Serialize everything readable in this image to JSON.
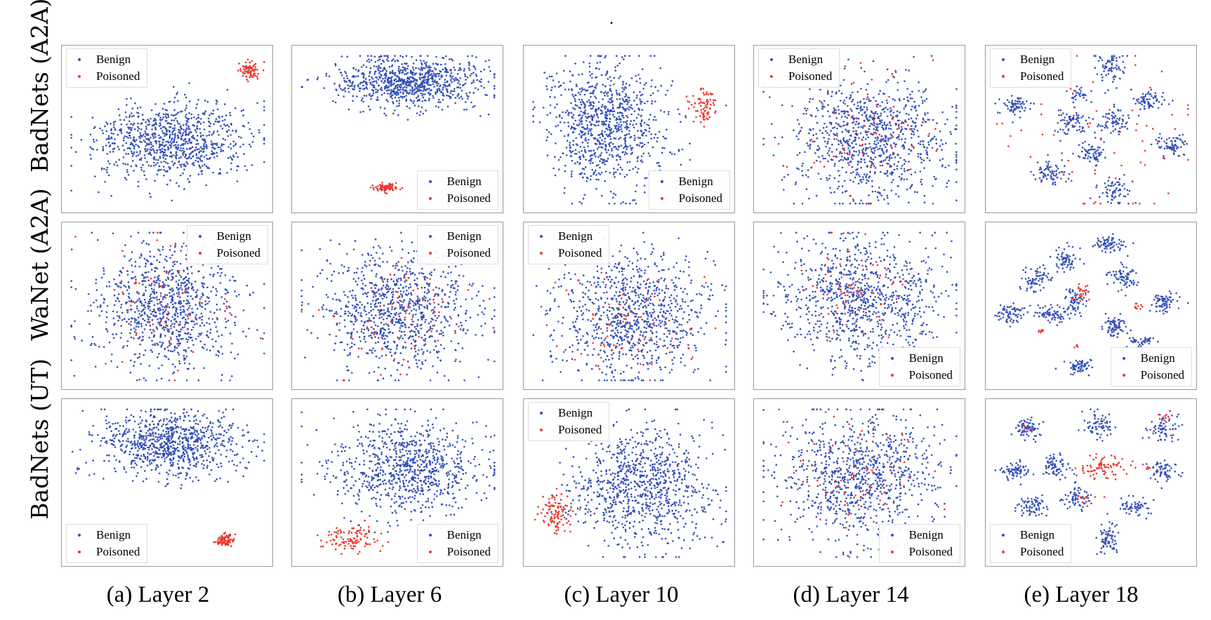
{
  "figure": {
    "period_mark": ".",
    "row_labels": [
      "BadNets (A2A)",
      "WaNet (A2A)",
      "BadNets (UT)"
    ],
    "column_captions": [
      "(a) Layer 2",
      "(b) Layer 6",
      "(c) Layer 10",
      "(d) Layer 14",
      "(e) Layer 18"
    ]
  },
  "colors": {
    "benign": "#3450b8",
    "poisoned": "#e8372f",
    "frame": "#9a9a9a"
  },
  "chart_data": [
    {
      "row": "BadNets (A2A)",
      "layer": "Layer 2",
      "type": "scatter",
      "legend": [
        "Benign",
        "Poisoned"
      ],
      "legend_loc": "top-left",
      "benign_clusters": [
        {
          "cx": 0.52,
          "cy": 0.57,
          "sx": 0.19,
          "sy": 0.12,
          "n": 900
        }
      ],
      "poisoned_clusters": [
        {
          "cx": 0.91,
          "cy": 0.12,
          "sx": 0.025,
          "sy": 0.03,
          "n": 80
        }
      ]
    },
    {
      "row": "BadNets (A2A)",
      "layer": "Layer 6",
      "type": "scatter",
      "legend": [
        "Benign",
        "Poisoned"
      ],
      "legend_loc": "bottom-right",
      "benign_clusters": [
        {
          "cx": 0.55,
          "cy": 0.2,
          "sx": 0.18,
          "sy": 0.08,
          "n": 850
        }
      ],
      "poisoned_clusters": [
        {
          "cx": 0.44,
          "cy": 0.87,
          "sx": 0.03,
          "sy": 0.012,
          "n": 80
        }
      ]
    },
    {
      "row": "BadNets (A2A)",
      "layer": "Layer 10",
      "type": "scatter",
      "legend": [
        "Benign",
        "Poisoned"
      ],
      "legend_loc": "bottom-right",
      "benign_clusters": [
        {
          "cx": 0.38,
          "cy": 0.47,
          "sx": 0.14,
          "sy": 0.2,
          "n": 900
        }
      ],
      "poisoned_clusters": [
        {
          "cx": 0.86,
          "cy": 0.35,
          "sx": 0.04,
          "sy": 0.06,
          "n": 80
        }
      ]
    },
    {
      "row": "BadNets (A2A)",
      "layer": "Layer 14",
      "type": "scatter",
      "legend": [
        "Benign",
        "Poisoned"
      ],
      "legend_loc": "top-left",
      "benign_clusters": [
        {
          "cx": 0.55,
          "cy": 0.55,
          "sx": 0.2,
          "sy": 0.2,
          "n": 900
        }
      ],
      "poisoned_clusters": [
        {
          "cx": 0.55,
          "cy": 0.5,
          "sx": 0.18,
          "sy": 0.2,
          "n": 90
        }
      ]
    },
    {
      "row": "BadNets (A2A)",
      "layer": "Layer 18",
      "type": "scatter",
      "legend": [
        "Benign",
        "Poisoned"
      ],
      "legend_loc": "top-left",
      "benign_clusters": [
        {
          "cx": 0.12,
          "cy": 0.35,
          "sx": 0.04,
          "sy": 0.03,
          "n": 70
        },
        {
          "cx": 0.59,
          "cy": 0.1,
          "sx": 0.035,
          "sy": 0.06,
          "n": 70
        },
        {
          "cx": 0.78,
          "cy": 0.32,
          "sx": 0.04,
          "sy": 0.035,
          "n": 70
        },
        {
          "cx": 0.4,
          "cy": 0.45,
          "sx": 0.04,
          "sy": 0.04,
          "n": 70
        },
        {
          "cx": 0.62,
          "cy": 0.45,
          "sx": 0.04,
          "sy": 0.05,
          "n": 70
        },
        {
          "cx": 0.9,
          "cy": 0.6,
          "sx": 0.04,
          "sy": 0.035,
          "n": 70
        },
        {
          "cx": 0.3,
          "cy": 0.77,
          "sx": 0.04,
          "sy": 0.04,
          "n": 70
        },
        {
          "cx": 0.5,
          "cy": 0.65,
          "sx": 0.035,
          "sy": 0.04,
          "n": 70
        },
        {
          "cx": 0.62,
          "cy": 0.88,
          "sx": 0.04,
          "sy": 0.04,
          "n": 70
        },
        {
          "cx": 0.42,
          "cy": 0.28,
          "sx": 0.03,
          "sy": 0.025,
          "n": 30
        }
      ],
      "poisoned_clusters": [
        {
          "cx": 0.55,
          "cy": 0.55,
          "sx": 0.28,
          "sy": 0.28,
          "n": 70
        }
      ]
    },
    {
      "row": "WaNet (A2A)",
      "layer": "Layer 2",
      "type": "scatter",
      "legend": [
        "Benign",
        "Poisoned"
      ],
      "legend_loc": "top-right",
      "benign_clusters": [
        {
          "cx": 0.5,
          "cy": 0.5,
          "sx": 0.18,
          "sy": 0.2,
          "n": 900
        }
      ],
      "poisoned_clusters": [
        {
          "cx": 0.5,
          "cy": 0.52,
          "sx": 0.18,
          "sy": 0.2,
          "n": 80
        }
      ]
    },
    {
      "row": "WaNet (A2A)",
      "layer": "Layer 6",
      "type": "scatter",
      "legend": [
        "Benign",
        "Poisoned"
      ],
      "legend_loc": "top-right",
      "benign_clusters": [
        {
          "cx": 0.5,
          "cy": 0.52,
          "sx": 0.2,
          "sy": 0.2,
          "n": 900
        }
      ],
      "poisoned_clusters": [
        {
          "cx": 0.5,
          "cy": 0.5,
          "sx": 0.18,
          "sy": 0.2,
          "n": 80
        }
      ]
    },
    {
      "row": "WaNet (A2A)",
      "layer": "Layer 10",
      "type": "scatter",
      "legend": [
        "Benign",
        "Poisoned"
      ],
      "legend_loc": "top-left",
      "benign_clusters": [
        {
          "cx": 0.52,
          "cy": 0.55,
          "sx": 0.2,
          "sy": 0.2,
          "n": 900
        }
      ],
      "poisoned_clusters": [
        {
          "cx": 0.5,
          "cy": 0.55,
          "sx": 0.18,
          "sy": 0.2,
          "n": 80
        }
      ]
    },
    {
      "row": "WaNet (A2A)",
      "layer": "Layer 14",
      "type": "scatter",
      "legend": [
        "Benign",
        "Poisoned"
      ],
      "legend_loc": "bottom-right",
      "benign_clusters": [
        {
          "cx": 0.5,
          "cy": 0.45,
          "sx": 0.2,
          "sy": 0.2,
          "n": 900
        }
      ],
      "poisoned_clusters": [
        {
          "cx": 0.45,
          "cy": 0.4,
          "sx": 0.14,
          "sy": 0.15,
          "n": 70
        }
      ]
    },
    {
      "row": "WaNet (A2A)",
      "layer": "Layer 18",
      "type": "scatter",
      "legend": [
        "Benign",
        "Poisoned"
      ],
      "legend_loc": "bottom-right",
      "benign_clusters": [
        {
          "cx": 0.6,
          "cy": 0.1,
          "sx": 0.04,
          "sy": 0.025,
          "n": 70
        },
        {
          "cx": 0.37,
          "cy": 0.2,
          "sx": 0.035,
          "sy": 0.04,
          "n": 70
        },
        {
          "cx": 0.22,
          "cy": 0.32,
          "sx": 0.04,
          "sy": 0.035,
          "n": 70
        },
        {
          "cx": 0.66,
          "cy": 0.32,
          "sx": 0.035,
          "sy": 0.04,
          "n": 70
        },
        {
          "cx": 0.3,
          "cy": 0.55,
          "sx": 0.04,
          "sy": 0.035,
          "n": 70
        },
        {
          "cx": 0.86,
          "cy": 0.47,
          "sx": 0.035,
          "sy": 0.035,
          "n": 70
        },
        {
          "cx": 0.1,
          "cy": 0.55,
          "sx": 0.04,
          "sy": 0.035,
          "n": 70
        },
        {
          "cx": 0.62,
          "cy": 0.62,
          "sx": 0.03,
          "sy": 0.04,
          "n": 70
        },
        {
          "cx": 0.74,
          "cy": 0.72,
          "sx": 0.035,
          "sy": 0.02,
          "n": 40
        },
        {
          "cx": 0.42,
          "cy": 0.47,
          "sx": 0.03,
          "sy": 0.035,
          "n": 60
        },
        {
          "cx": 0.44,
          "cy": 0.88,
          "sx": 0.035,
          "sy": 0.025,
          "n": 60
        }
      ],
      "poisoned_clusters": [
        {
          "cx": 0.45,
          "cy": 0.42,
          "sx": 0.02,
          "sy": 0.03,
          "n": 25
        },
        {
          "cx": 0.73,
          "cy": 0.5,
          "sx": 0.015,
          "sy": 0.01,
          "n": 10
        },
        {
          "cx": 0.25,
          "cy": 0.65,
          "sx": 0.01,
          "sy": 0.01,
          "n": 8
        },
        {
          "cx": 0.42,
          "cy": 0.75,
          "sx": 0.01,
          "sy": 0.01,
          "n": 5
        }
      ]
    },
    {
      "row": "BadNets (UT)",
      "layer": "Layer 2",
      "type": "scatter",
      "legend": [
        "Benign",
        "Poisoned"
      ],
      "legend_loc": "bottom-left",
      "benign_clusters": [
        {
          "cx": 0.5,
          "cy": 0.25,
          "sx": 0.18,
          "sy": 0.1,
          "n": 850
        }
      ],
      "poisoned_clusters": [
        {
          "cx": 0.78,
          "cy": 0.86,
          "sx": 0.025,
          "sy": 0.02,
          "n": 80
        }
      ]
    },
    {
      "row": "BadNets (UT)",
      "layer": "Layer 6",
      "type": "scatter",
      "legend": [
        "Benign",
        "Poisoned"
      ],
      "legend_loc": "bottom-right",
      "benign_clusters": [
        {
          "cx": 0.55,
          "cy": 0.4,
          "sx": 0.19,
          "sy": 0.15,
          "n": 850
        }
      ],
      "poisoned_clusters": [
        {
          "cx": 0.27,
          "cy": 0.85,
          "sx": 0.07,
          "sy": 0.04,
          "n": 100
        }
      ]
    },
    {
      "row": "BadNets (UT)",
      "layer": "Layer 10",
      "type": "scatter",
      "legend": [
        "Benign",
        "Poisoned"
      ],
      "legend_loc": "top-left",
      "benign_clusters": [
        {
          "cx": 0.56,
          "cy": 0.52,
          "sx": 0.17,
          "sy": 0.18,
          "n": 900
        }
      ],
      "poisoned_clusters": [
        {
          "cx": 0.13,
          "cy": 0.69,
          "sx": 0.04,
          "sy": 0.06,
          "n": 100
        }
      ]
    },
    {
      "row": "BadNets (UT)",
      "layer": "Layer 14",
      "type": "scatter",
      "legend": [
        "Benign",
        "Poisoned"
      ],
      "legend_loc": "bottom-right",
      "benign_clusters": [
        {
          "cx": 0.5,
          "cy": 0.47,
          "sx": 0.2,
          "sy": 0.2,
          "n": 900
        }
      ],
      "poisoned_clusters": [
        {
          "cx": 0.5,
          "cy": 0.45,
          "sx": 0.18,
          "sy": 0.2,
          "n": 80
        }
      ]
    },
    {
      "row": "BadNets (UT)",
      "layer": "Layer 18",
      "type": "scatter",
      "legend": [
        "Benign",
        "Poisoned"
      ],
      "legend_loc": "bottom-left",
      "benign_clusters": [
        {
          "cx": 0.18,
          "cy": 0.15,
          "sx": 0.035,
          "sy": 0.035,
          "n": 70
        },
        {
          "cx": 0.53,
          "cy": 0.13,
          "sx": 0.035,
          "sy": 0.04,
          "n": 70
        },
        {
          "cx": 0.86,
          "cy": 0.15,
          "sx": 0.04,
          "sy": 0.04,
          "n": 70
        },
        {
          "cx": 0.12,
          "cy": 0.42,
          "sx": 0.035,
          "sy": 0.035,
          "n": 70
        },
        {
          "cx": 0.32,
          "cy": 0.4,
          "sx": 0.035,
          "sy": 0.04,
          "n": 70
        },
        {
          "cx": 0.86,
          "cy": 0.42,
          "sx": 0.035,
          "sy": 0.035,
          "n": 70
        },
        {
          "cx": 0.2,
          "cy": 0.65,
          "sx": 0.035,
          "sy": 0.035,
          "n": 70
        },
        {
          "cx": 0.43,
          "cy": 0.6,
          "sx": 0.035,
          "sy": 0.04,
          "n": 70
        },
        {
          "cx": 0.72,
          "cy": 0.65,
          "sx": 0.035,
          "sy": 0.025,
          "n": 60
        },
        {
          "cx": 0.58,
          "cy": 0.85,
          "sx": 0.03,
          "sy": 0.05,
          "n": 70
        }
      ],
      "poisoned_clusters": [
        {
          "cx": 0.55,
          "cy": 0.4,
          "sx": 0.06,
          "sy": 0.04,
          "n": 80
        },
        {
          "cx": 0.86,
          "cy": 0.08,
          "sx": 0.02,
          "sy": 0.01,
          "n": 8
        },
        {
          "cx": 0.78,
          "cy": 0.4,
          "sx": 0.01,
          "sy": 0.02,
          "n": 6
        },
        {
          "cx": 0.48,
          "cy": 0.6,
          "sx": 0.03,
          "sy": 0.03,
          "n": 10
        },
        {
          "cx": 0.2,
          "cy": 0.15,
          "sx": 0.03,
          "sy": 0.03,
          "n": 5
        }
      ]
    }
  ]
}
